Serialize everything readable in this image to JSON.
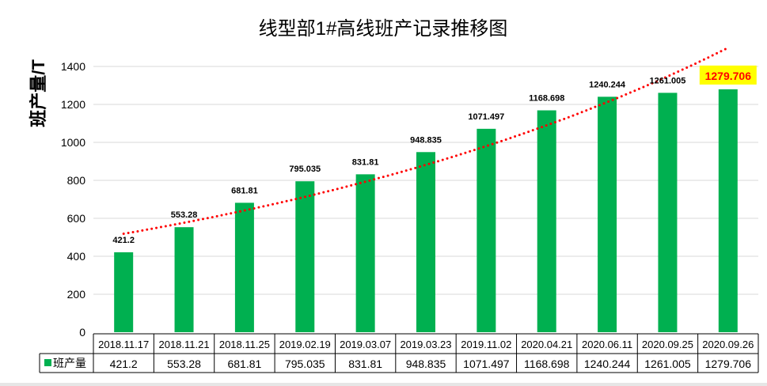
{
  "chart_data": {
    "type": "bar",
    "title": "线型部1#高线班产记录推移图",
    "ylabel": "班产量/T",
    "xlabel": "",
    "ylim": [
      0,
      1400
    ],
    "yticks": [
      0,
      200,
      400,
      600,
      800,
      1000,
      1200,
      1400
    ],
    "grid": true,
    "categories": [
      "2018.11.17",
      "2018.11.21",
      "2018.11.25",
      "2019.02.19",
      "2019.03.07",
      "2019.03.23",
      "2019.11.02",
      "2020.04.21",
      "2020.06.11",
      "2020.09.25",
      "2020.09.26"
    ],
    "series": [
      {
        "name": "班产量",
        "color": "#00B050",
        "values": [
          421.2,
          553.28,
          681.81,
          795.035,
          831.81,
          948.835,
          1071.497,
          1168.698,
          1240.244,
          1261.005,
          1279.706
        ],
        "labels": [
          "421.2",
          "553.28",
          "681.81",
          "795.035",
          "831.81",
          "948.835",
          "1071.497",
          "1168.698",
          "1240.244",
          "1261.005",
          "1279.706"
        ]
      }
    ],
    "trendline": {
      "type": "exponential",
      "color": "#FF0000",
      "style": "dotted"
    },
    "highlight": {
      "index": 10,
      "text_color": "#FF0000",
      "background": "#FFFF00"
    },
    "data_table": true,
    "legend": "data-table"
  }
}
